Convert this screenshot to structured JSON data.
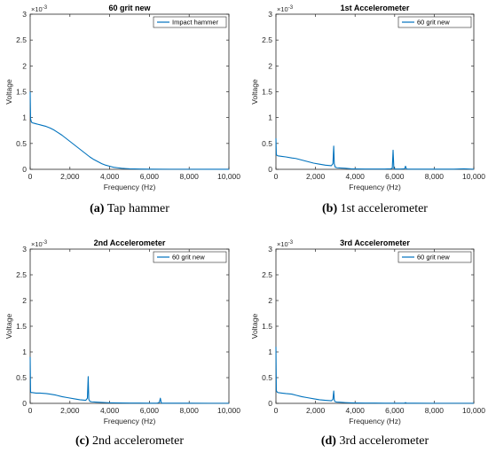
{
  "chart_data": [
    {
      "type": "line",
      "title": "60 grit new",
      "caption_label": "(a)",
      "caption_text": "Tap hammer",
      "xlabel": "Frequency (Hz)",
      "ylabel": "Voltage",
      "y_exponent": "×10",
      "y_exponent_power": "-3",
      "xlim": [
        0,
        10000
      ],
      "ylim": [
        0,
        0.003
      ],
      "x_ticks": [
        0,
        2000,
        4000,
        6000,
        8000,
        10000
      ],
      "x_tick_labels": [
        "0",
        "2,000",
        "4,000",
        "6,000",
        "8,000",
        "10,000"
      ],
      "y_ticks": [
        0,
        0.0005,
        0.001,
        0.0015,
        0.002,
        0.0025,
        0.003
      ],
      "y_tick_labels": [
        "0",
        "0.5",
        "1",
        "1.5",
        "2",
        "2.5",
        "3"
      ],
      "legend_position": "top-right",
      "color": "#0072BD",
      "series": [
        {
          "name": "Impact hammer",
          "x": [
            0,
            20,
            60,
            100,
            200,
            300,
            400,
            500,
            600,
            800,
            1000,
            1200,
            1400,
            1600,
            1800,
            2000,
            2200,
            2400,
            2600,
            2800,
            3000,
            3200,
            3400,
            3600,
            3800,
            4000,
            4200,
            4400,
            4600,
            4800,
            5000,
            5500,
            6000,
            7000,
            8000,
            9000,
            10000
          ],
          "y": [
            0.0015,
            0.00098,
            0.00092,
            0.0009,
            0.00089,
            0.00088,
            0.00087,
            0.00086,
            0.00085,
            0.00083,
            0.0008,
            0.00076,
            0.00071,
            0.00066,
            0.0006,
            0.00054,
            0.00048,
            0.00042,
            0.00036,
            0.0003,
            0.00024,
            0.00019,
            0.00015,
            0.00011,
            8e-05,
            6e-05,
            4e-05,
            3e-05,
            2e-05,
            1.5e-05,
            1e-05,
            5e-06,
            3e-06,
            2e-06,
            2e-06,
            1e-06,
            1e-06
          ]
        }
      ]
    },
    {
      "type": "line",
      "title": "1st Accelerometer",
      "caption_label": "(b)",
      "caption_text": "1st accelerometer",
      "xlabel": "Frequency (Hz)",
      "ylabel": "Voltage",
      "y_exponent": "×10",
      "y_exponent_power": "-3",
      "xlim": [
        0,
        10000
      ],
      "ylim": [
        0,
        0.003
      ],
      "x_ticks": [
        0,
        2000,
        4000,
        6000,
        8000,
        10000
      ],
      "x_tick_labels": [
        "0",
        "2,000",
        "4,000",
        "6,000",
        "8,000",
        "10,000"
      ],
      "y_ticks": [
        0,
        0.0005,
        0.001,
        0.0015,
        0.002,
        0.0025,
        0.003
      ],
      "y_tick_labels": [
        "0",
        "0.5",
        "1",
        "1.5",
        "2",
        "2.5",
        "3"
      ],
      "legend_position": "top-right",
      "color": "#0072BD",
      "series": [
        {
          "name": "60 grit new",
          "x": [
            0,
            20,
            60,
            100,
            300,
            500,
            800,
            1000,
            1300,
            1600,
            1900,
            2200,
            2500,
            2800,
            2880,
            2920,
            2950,
            3000,
            3100,
            3300,
            3500,
            3800,
            4000,
            4500,
            5000,
            5500,
            5800,
            5880,
            5920,
            5960,
            6000,
            6300,
            6500,
            6550,
            6600,
            6700,
            7000,
            8000,
            9000,
            9500,
            10000
          ],
          "y": [
            0.0006,
            0.00028,
            0.00027,
            0.00026,
            0.00025,
            0.00024,
            0.00022,
            0.00021,
            0.00018,
            0.00015,
            0.00012,
            0.0001,
            8e-05,
            7e-05,
            0.00011,
            0.00045,
            0.0001,
            4e-05,
            3e-05,
            2.5e-05,
            2e-05,
            1e-05,
            8e-06,
            6e-06,
            5e-06,
            5e-06,
            1e-05,
            2e-05,
            0.00037,
            2e-05,
            6e-06,
            5e-06,
            1e-05,
            6e-05,
            5e-06,
            4e-06,
            3e-06,
            3e-06,
            3e-06,
            1e-05,
            2e-06
          ]
        }
      ]
    },
    {
      "type": "line",
      "title": "2nd Accelerometer",
      "caption_label": "(c)",
      "caption_text": "2nd accelerometer",
      "xlabel": "Frequency (Hz)",
      "ylabel": "Voltage",
      "y_exponent": "×10",
      "y_exponent_power": "-3",
      "xlim": [
        0,
        10000
      ],
      "ylim": [
        0,
        0.003
      ],
      "x_ticks": [
        0,
        2000,
        4000,
        6000,
        8000,
        10000
      ],
      "x_tick_labels": [
        "0",
        "2,000",
        "4,000",
        "6,000",
        "8,000",
        "10,000"
      ],
      "y_ticks": [
        0,
        0.0005,
        0.001,
        0.0015,
        0.002,
        0.0025,
        0.003
      ],
      "y_tick_labels": [
        "0",
        "0.5",
        "1",
        "1.5",
        "2",
        "2.5",
        "3"
      ],
      "legend_position": "top-right",
      "color": "#0072BD",
      "series": [
        {
          "name": "60 grit new",
          "x": [
            0,
            20,
            60,
            100,
            300,
            500,
            800,
            1000,
            1300,
            1600,
            1900,
            2200,
            2500,
            2800,
            2880,
            2920,
            2950,
            3000,
            3100,
            3300,
            3500,
            3800,
            4000,
            4500,
            5000,
            5500,
            6000,
            6400,
            6500,
            6550,
            6600,
            6700,
            7000,
            8000,
            9000,
            10000
          ],
          "y": [
            0.0009,
            0.00022,
            0.00021,
            0.00021,
            0.0002,
            0.0002,
            0.00019,
            0.00018,
            0.00016,
            0.00013,
            0.00011,
            9e-05,
            7e-05,
            6e-05,
            0.0001,
            0.00052,
            8e-05,
            4e-05,
            3e-05,
            2.5e-05,
            2e-05,
            1.5e-05,
            1e-05,
            8e-06,
            6e-06,
            5e-06,
            4e-06,
            4e-06,
            2e-05,
            0.0001,
            5e-06,
            4e-06,
            3e-06,
            3e-06,
            2e-06,
            2e-06
          ]
        }
      ]
    },
    {
      "type": "line",
      "title": "3rd Accelerometer",
      "caption_label": "(d)",
      "caption_text": "3rd accelerometer",
      "xlabel": "Frequency (Hz)",
      "ylabel": "Voltage",
      "y_exponent": "×10",
      "y_exponent_power": "-3",
      "xlim": [
        0,
        10000
      ],
      "ylim": [
        0,
        0.003
      ],
      "x_ticks": [
        0,
        2000,
        4000,
        6000,
        8000,
        10000
      ],
      "x_tick_labels": [
        "0",
        "2,000",
        "4,000",
        "6,000",
        "8,000",
        "10,000"
      ],
      "y_ticks": [
        0,
        0.0005,
        0.001,
        0.0015,
        0.002,
        0.0025,
        0.003
      ],
      "y_tick_labels": [
        "0",
        "0.5",
        "1",
        "1.5",
        "2",
        "2.5",
        "3"
      ],
      "legend_position": "top-right",
      "color": "#0072BD",
      "series": [
        {
          "name": "60 grit new",
          "x": [
            0,
            20,
            60,
            100,
            300,
            500,
            800,
            1000,
            1300,
            1600,
            1900,
            2200,
            2500,
            2800,
            2880,
            2920,
            2950,
            3000,
            3100,
            3300,
            3500,
            3800,
            4000,
            4500,
            5000,
            5500,
            6000,
            6500,
            6550,
            6600,
            7000,
            8000,
            9000,
            10000
          ],
          "y": [
            0.0011,
            0.00025,
            0.00022,
            0.00021,
            0.0002,
            0.00019,
            0.00018,
            0.00016,
            0.00013,
            0.00011,
            9e-05,
            7e-05,
            6e-05,
            5e-05,
            8e-05,
            0.00024,
            6e-05,
            3e-05,
            2.5e-05,
            2e-05,
            1.5e-05,
            1e-05,
            8e-06,
            6e-06,
            5e-06,
            4e-06,
            4e-06,
            4e-06,
            1.5e-05,
            3e-06,
            3e-06,
            2e-06,
            2e-06,
            2e-06
          ]
        }
      ]
    }
  ]
}
